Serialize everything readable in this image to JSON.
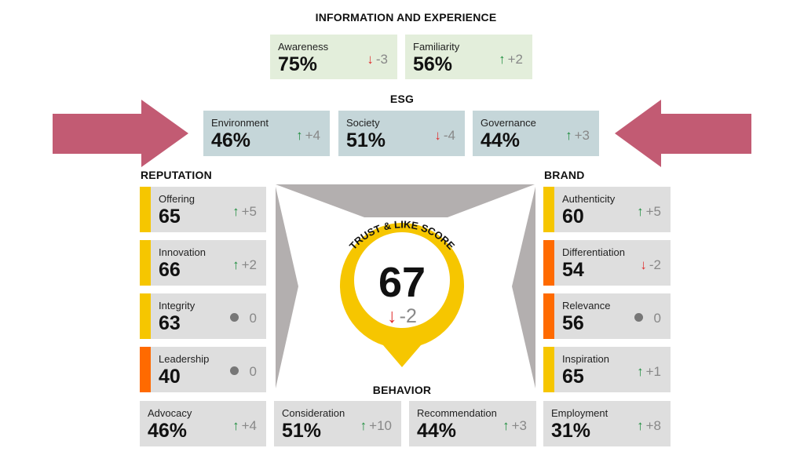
{
  "sections": {
    "information": "INFORMATION AND EXPERIENCE",
    "esg": "ESG",
    "reputation": "REPUTATION",
    "brand": "BRAND",
    "behavior": "BEHAVIOR"
  },
  "information": [
    {
      "label": "Awareness",
      "value": "75%",
      "trend": "down",
      "change": "-3"
    },
    {
      "label": "Familiarity",
      "value": "56%",
      "trend": "up",
      "change": "+2"
    }
  ],
  "esg": [
    {
      "label": "Environment",
      "value": "46%",
      "trend": "up",
      "change": "+4"
    },
    {
      "label": "Society",
      "value": "51%",
      "trend": "down",
      "change": "-4"
    },
    {
      "label": "Governance",
      "value": "44%",
      "trend": "up",
      "change": "+3"
    }
  ],
  "reputation": [
    {
      "label": "Offering",
      "value": "65",
      "trend": "up",
      "change": "+5",
      "bar": "#f6c600"
    },
    {
      "label": "Innovation",
      "value": "66",
      "trend": "up",
      "change": "+2",
      "bar": "#f6c600"
    },
    {
      "label": "Integrity",
      "value": "63",
      "trend": "flat",
      "change": "0",
      "bar": "#f6c600"
    },
    {
      "label": "Leadership",
      "value": "40",
      "trend": "flat",
      "change": "0",
      "bar": "#ff6a00"
    }
  ],
  "brand": [
    {
      "label": "Authenticity",
      "value": "60",
      "trend": "up",
      "change": "+5",
      "bar": "#f6c600"
    },
    {
      "label": "Differentiation",
      "value": "54",
      "trend": "down",
      "change": "-2",
      "bar": "#ff6a00"
    },
    {
      "label": "Relevance",
      "value": "56",
      "trend": "flat",
      "change": "0",
      "bar": "#ff6a00"
    },
    {
      "label": "Inspiration",
      "value": "65",
      "trend": "up",
      "change": "+1",
      "bar": "#f6c600"
    }
  ],
  "behavior": [
    {
      "label": "Advocacy",
      "value": "46%",
      "trend": "up",
      "change": "+4"
    },
    {
      "label": "Consideration",
      "value": "51%",
      "trend": "up",
      "change": "+10"
    },
    {
      "label": "Recommendation",
      "value": "44%",
      "trend": "up",
      "change": "+3"
    },
    {
      "label": "Employment",
      "value": "31%",
      "trend": "up",
      "change": "+8"
    }
  ],
  "score": {
    "title": "TRUST & LIKE SCORE",
    "value": "67",
    "trend": "down",
    "change": "-2"
  },
  "colors": {
    "arrow": "#c25b73",
    "ring": "#f6c600",
    "funnel": "#b3afaf"
  }
}
